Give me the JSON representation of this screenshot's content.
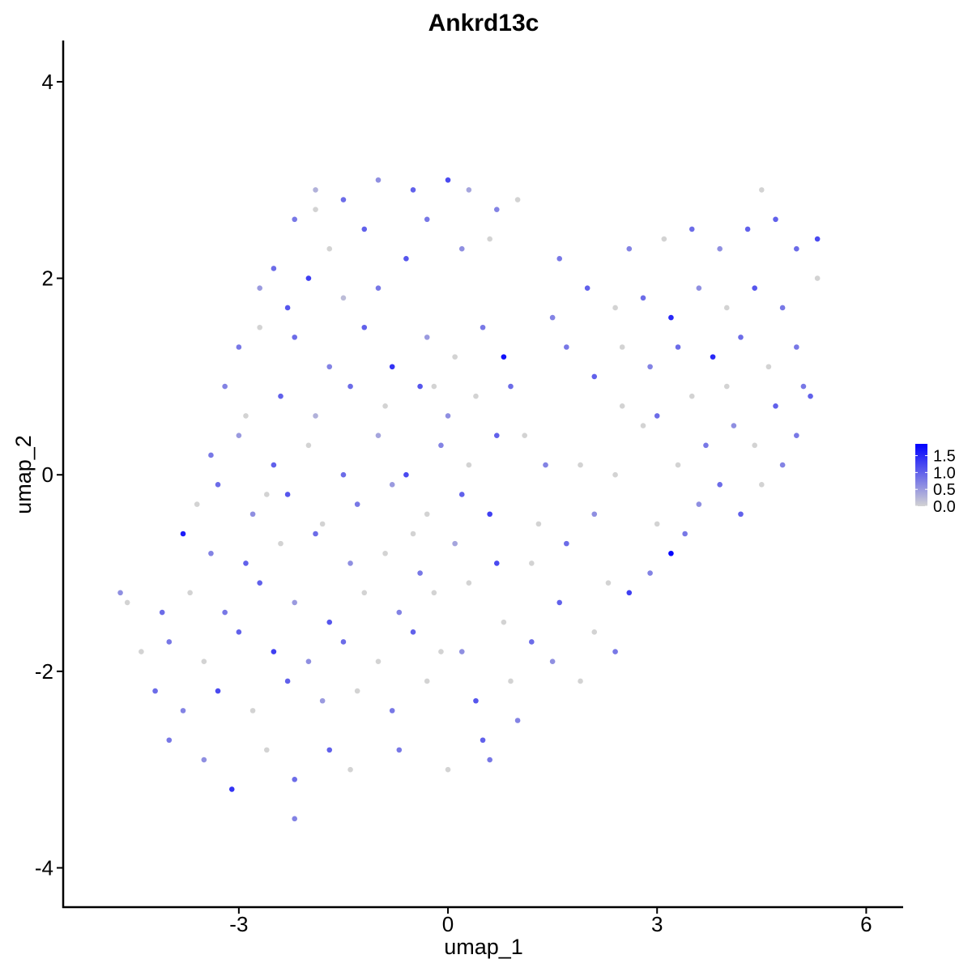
{
  "chart_data": {
    "type": "scatter",
    "title": "Ankrd13c",
    "x_label": "umap_1",
    "y_label": "umap_2",
    "xlim": [
      -5.52,
      6.53
    ],
    "ylim": [
      -4.4,
      4.42
    ],
    "xticks": [
      -3,
      0,
      3,
      6
    ],
    "yticks": [
      -4,
      -2,
      0,
      2,
      4
    ],
    "x": [
      -2.2,
      -1.9,
      -1.5,
      -1.0,
      -0.5,
      0,
      0.3,
      0.7,
      -1.2,
      -0.3,
      -2.5,
      -2.7,
      -2.0,
      -1.5,
      -1.0,
      -0.6,
      0.2,
      0.6,
      -1.7,
      -2.3,
      -3.0,
      -2.7,
      -2.2,
      -1.7,
      -1.2,
      -0.8,
      -0.3,
      0.1,
      0.5,
      0.8,
      -3.2,
      -2.9,
      -2.4,
      -1.9,
      -1.4,
      -0.9,
      -0.4,
      0.0,
      0.4,
      0.9,
      -3.4,
      -3.0,
      -2.5,
      -2.0,
      -1.5,
      -1.0,
      -0.6,
      -0.1,
      0.3,
      0.7,
      -3.6,
      -3.3,
      -2.8,
      -2.3,
      -1.8,
      -1.3,
      -0.8,
      -0.3,
      0.2,
      0.6,
      -3.8,
      -3.4,
      -2.9,
      -2.4,
      -1.9,
      -1.4,
      -0.9,
      -0.4,
      0.1,
      0.7,
      -4.7,
      -4.1,
      -3.7,
      -3.2,
      -2.7,
      -2.2,
      -1.7,
      -1.2,
      -0.7,
      -0.2,
      -4.4,
      -4.0,
      -3.5,
      -3.0,
      -2.5,
      -2.0,
      -1.5,
      -1.0,
      -0.5,
      0.2,
      -4.2,
      -3.8,
      -3.3,
      -2.8,
      -2.3,
      -1.8,
      -1.3,
      -0.8,
      -0.3,
      0.4,
      -4.0,
      -3.5,
      -3.1,
      -2.6,
      -2.2,
      -2.2,
      -1.7,
      -1.4,
      -0.7,
      0.0,
      0.5,
      0.6,
      1.0,
      0.9,
      1.2,
      0.8,
      1.5,
      1.9,
      1.6,
      1.2,
      1.3,
      1.7,
      2.1,
      2.3,
      2.1,
      2.4,
      1.4,
      1.9,
      2.4,
      1.1,
      2.6,
      2.9,
      3.2,
      3.4,
      3.0,
      3.6,
      3.9,
      4.2,
      4.5,
      4.8,
      3.3,
      3.7,
      4.1,
      4.4,
      5.0,
      4.7,
      5.1,
      3.5,
      3.0,
      2.5,
      1.7,
      2.1,
      2.5,
      2.9,
      3.3,
      3.8,
      4.2,
      4.6,
      5.0,
      5.2,
      1.5,
      2.0,
      2.4,
      2.8,
      3.2,
      3.6,
      4.0,
      4.4,
      4.8,
      5.3,
      1.6,
      2.6,
      3.1,
      3.5,
      3.9,
      4.3,
      4.5,
      4.7,
      5.0,
      5.3,
      -0.2,
      -0.5,
      0.3,
      -0.1,
      -1.9,
      2.8,
      4.0,
      -4.6,
      1.0,
      -2.6
    ],
    "y": [
      2.6,
      2.9,
      2.8,
      3.0,
      2.9,
      3.0,
      2.9,
      2.7,
      2.5,
      2.6,
      2.1,
      1.9,
      2.0,
      1.8,
      1.9,
      2.2,
      2.3,
      2.4,
      2.3,
      1.7,
      1.3,
      1.5,
      1.4,
      1.1,
      1.5,
      1.1,
      1.4,
      1.2,
      1.5,
      1.2,
      0.9,
      0.6,
      0.8,
      0.6,
      0.9,
      0.7,
      0.9,
      0.6,
      0.8,
      0.9,
      0.2,
      0.4,
      0.1,
      0.3,
      0.0,
      0.4,
      0.0,
      0.3,
      0.1,
      0.4,
      -0.3,
      -0.1,
      -0.4,
      -0.2,
      -0.5,
      -0.3,
      -0.1,
      -0.4,
      -0.2,
      -0.4,
      -0.6,
      -0.8,
      -0.9,
      -0.7,
      -0.6,
      -0.9,
      -0.8,
      -1.0,
      -0.7,
      -0.9,
      -1.2,
      -1.4,
      -1.2,
      -1.4,
      -1.1,
      -1.3,
      -1.5,
      -1.2,
      -1.4,
      -1.2,
      -1.8,
      -1.7,
      -1.9,
      -1.6,
      -1.8,
      -1.9,
      -1.7,
      -1.9,
      -1.6,
      -1.8,
      -2.2,
      -2.4,
      -2.2,
      -2.4,
      -2.1,
      -2.3,
      -2.2,
      -2.4,
      -2.1,
      -2.3,
      -2.7,
      -2.9,
      -3.2,
      -2.8,
      -3.1,
      -3.5,
      -2.8,
      -3.0,
      -2.8,
      -3.0,
      -2.7,
      -2.9,
      -2.5,
      -2.1,
      -1.7,
      -1.5,
      -1.9,
      -2.1,
      -1.3,
      -0.9,
      -0.5,
      -0.7,
      -0.4,
      -1.1,
      -1.6,
      -1.8,
      0.1,
      0.1,
      0.0,
      0.4,
      -1.2,
      -1.0,
      -0.8,
      -0.6,
      -0.5,
      -0.3,
      -0.1,
      -0.4,
      -0.1,
      0.1,
      0.1,
      0.3,
      0.5,
      0.3,
      0.4,
      0.7,
      0.9,
      0.8,
      0.6,
      0.7,
      1.3,
      1.0,
      1.3,
      1.1,
      1.3,
      1.2,
      1.4,
      1.1,
      1.3,
      0.8,
      1.6,
      1.9,
      1.7,
      1.8,
      1.6,
      1.9,
      1.7,
      1.9,
      1.7,
      2.0,
      2.2,
      2.3,
      2.4,
      2.5,
      2.3,
      2.5,
      2.9,
      2.6,
      2.3,
      2.4,
      0.9,
      -0.6,
      -1.1,
      -1.8,
      2.7,
      0.5,
      0.9,
      -1.3,
      2.8,
      -0.2
    ],
    "values": [
      0.8,
      0.3,
      0.9,
      0.6,
      1.0,
      1.2,
      0.4,
      0.7,
      1.0,
      0.8,
      0.9,
      0.5,
      1.3,
      0.2,
      0.8,
      1.1,
      0.6,
      0.0,
      0.0,
      1.1,
      0.8,
      0.0,
      0.9,
      0.7,
      1.0,
      1.4,
      0.5,
      0.0,
      0.8,
      1.7,
      0.7,
      0.0,
      1.0,
      0.3,
      0.9,
      0.0,
      1.1,
      0.6,
      0.0,
      0.9,
      0.8,
      0.5,
      1.0,
      0.0,
      0.9,
      0.4,
      1.2,
      0.7,
      0.0,
      1.0,
      0.0,
      0.9,
      0.6,
      1.1,
      0.0,
      0.8,
      0.5,
      0.0,
      1.0,
      1.3,
      1.6,
      0.7,
      1.0,
      0.0,
      0.9,
      0.6,
      0.0,
      0.8,
      0.4,
      1.2,
      0.6,
      0.9,
      0.0,
      0.8,
      1.0,
      0.5,
      1.1,
      0.0,
      0.7,
      0.0,
      0.0,
      0.8,
      0.0,
      1.0,
      1.3,
      0.6,
      0.9,
      0.0,
      1.0,
      0.6,
      0.9,
      0.7,
      1.2,
      0.0,
      1.0,
      0.5,
      0.0,
      0.8,
      0.0,
      1.1,
      0.8,
      0.6,
      1.4,
      0.0,
      0.9,
      0.7,
      1.0,
      0.0,
      0.8,
      0.0,
      1.0,
      0.8,
      0.7,
      0.0,
      0.9,
      0.0,
      0.6,
      0.0,
      1.0,
      0.0,
      0.0,
      0.9,
      0.6,
      0.0,
      0.0,
      0.8,
      0.7,
      0.0,
      0.0,
      0.0,
      1.3,
      0.7,
      1.8,
      0.8,
      0.0,
      0.6,
      0.9,
      1.0,
      0.0,
      0.7,
      0.0,
      0.8,
      0.6,
      0.0,
      0.8,
      1.0,
      0.8,
      0.0,
      0.9,
      0.0,
      0.8,
      1.0,
      0.0,
      0.7,
      0.9,
      1.5,
      0.9,
      0.0,
      0.8,
      1.0,
      0.7,
      1.0,
      0.0,
      0.9,
      1.5,
      0.6,
      0.0,
      1.1,
      0.8,
      0.0,
      0.8,
      0.7,
      0.0,
      0.9,
      0.6,
      1.0,
      0.0,
      1.0,
      0.9,
      1.2,
      0.0,
      0.0,
      0.0,
      0.0,
      0.0,
      0.0,
      0.0,
      0.0,
      0.0,
      0.0
    ],
    "colorbar": {
      "lim": [
        0,
        1.85
      ],
      "low": "#d3d3d3",
      "high": "#0000ff",
      "ticks": [
        {
          "value": 1.5,
          "label": "1.5"
        },
        {
          "value": 1.0,
          "label": "1.0"
        },
        {
          "value": 0.5,
          "label": "0.5"
        },
        {
          "value": 0,
          "label": "0.0"
        }
      ]
    }
  }
}
